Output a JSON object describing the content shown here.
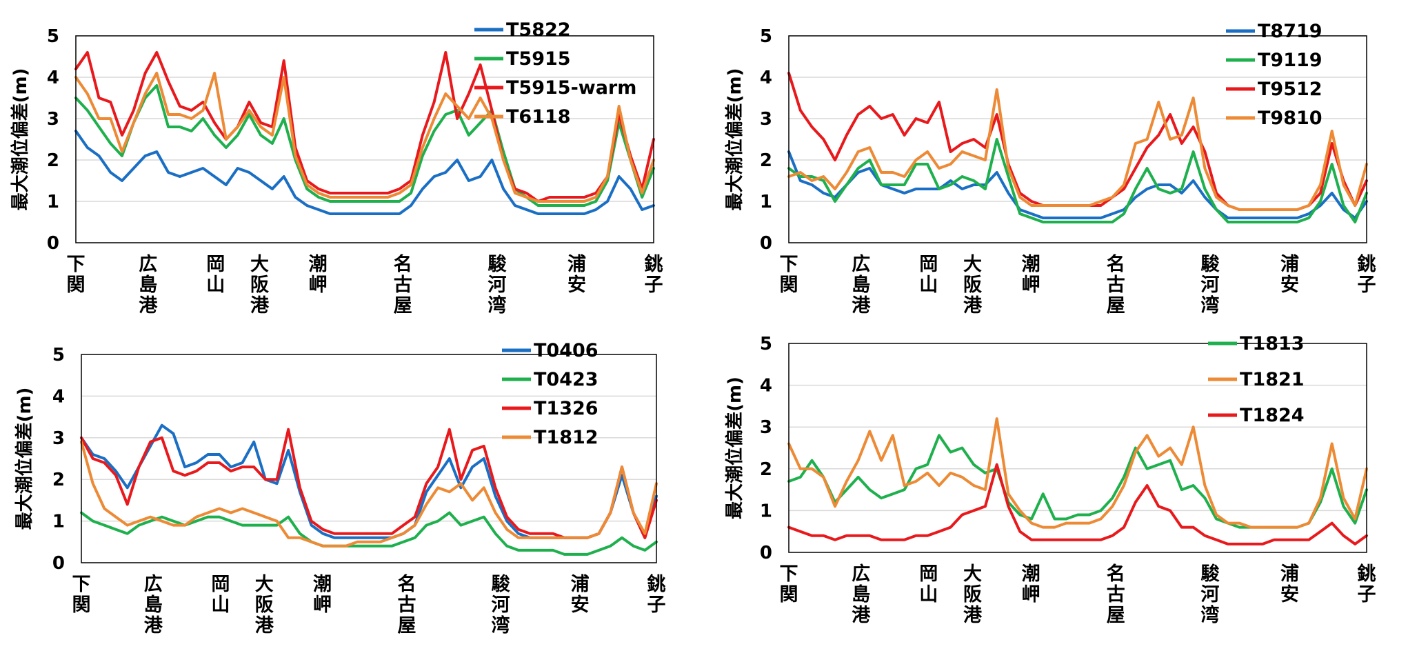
{
  "chart_data": [
    {
      "type": "line",
      "ylabel": "最大潮位偏差(m)",
      "ylim": [
        0,
        5
      ],
      "yticks": [
        "0",
        "1",
        "2",
        "3",
        "4",
        "5"
      ],
      "x_labels": [
        "下関",
        "広島港",
        "岡山",
        "大阪港",
        "潮岬",
        "名古屋",
        "駿河湾",
        "浦安",
        "銚子"
      ],
      "x_label_pos": [
        0.0,
        0.125,
        0.242,
        0.318,
        0.419,
        0.566,
        0.729,
        0.867,
        1.0
      ],
      "legend": "top-right",
      "x": [
        0.0,
        0.02,
        0.04,
        0.06,
        0.08,
        0.1,
        0.12,
        0.14,
        0.16,
        0.18,
        0.2,
        0.22,
        0.24,
        0.26,
        0.28,
        0.3,
        0.32,
        0.34,
        0.36,
        0.38,
        0.4,
        0.42,
        0.44,
        0.46,
        0.48,
        0.5,
        0.52,
        0.54,
        0.56,
        0.58,
        0.6,
        0.62,
        0.64,
        0.66,
        0.68,
        0.7,
        0.72,
        0.74,
        0.76,
        0.78,
        0.8,
        0.82,
        0.84,
        0.86,
        0.88,
        0.9,
        0.92,
        0.94,
        0.96,
        0.98,
        1.0
      ],
      "series": [
        {
          "name": "T5822",
          "color": "#1a6fc4",
          "values": [
            2.7,
            2.3,
            2.1,
            1.7,
            1.5,
            1.8,
            2.1,
            2.2,
            1.7,
            1.6,
            1.7,
            1.8,
            1.6,
            1.4,
            1.8,
            1.7,
            1.5,
            1.3,
            1.6,
            1.1,
            0.9,
            0.8,
            0.7,
            0.7,
            0.7,
            0.7,
            0.7,
            0.7,
            0.7,
            0.9,
            1.3,
            1.6,
            1.7,
            2.0,
            1.5,
            1.6,
            2.0,
            1.3,
            0.9,
            0.8,
            0.7,
            0.7,
            0.7,
            0.7,
            0.7,
            0.8,
            1.0,
            1.6,
            1.3,
            0.8,
            0.9
          ]
        },
        {
          "name": "T5915",
          "color": "#1fb04e",
          "values": [
            3.5,
            3.2,
            2.8,
            2.4,
            2.1,
            2.9,
            3.5,
            3.8,
            2.8,
            2.8,
            2.7,
            3.0,
            2.6,
            2.3,
            2.6,
            3.1,
            2.6,
            2.4,
            3.0,
            2.0,
            1.3,
            1.1,
            1.0,
            1.0,
            1.0,
            1.0,
            1.0,
            1.0,
            1.0,
            1.2,
            2.1,
            2.7,
            3.1,
            3.2,
            2.6,
            2.9,
            3.2,
            2.2,
            1.3,
            1.1,
            0.9,
            0.9,
            0.9,
            0.9,
            0.9,
            1.0,
            1.5,
            2.9,
            2.0,
            1.1,
            1.8
          ]
        },
        {
          "name": "T5915-warm",
          "color": "#e8191c",
          "values": [
            4.2,
            4.6,
            3.5,
            3.4,
            2.6,
            3.2,
            4.1,
            4.6,
            3.9,
            3.3,
            3.2,
            3.4,
            2.9,
            2.5,
            2.8,
            3.4,
            2.9,
            2.8,
            4.4,
            2.3,
            1.5,
            1.3,
            1.2,
            1.2,
            1.2,
            1.2,
            1.2,
            1.2,
            1.3,
            1.5,
            2.6,
            3.4,
            4.6,
            3.0,
            3.6,
            4.3,
            3.2,
            2.0,
            1.3,
            1.2,
            1.0,
            1.1,
            1.1,
            1.1,
            1.1,
            1.2,
            1.6,
            3.1,
            2.1,
            1.3,
            2.5
          ]
        },
        {
          "name": "T6118",
          "color": "#ed8a35",
          "values": [
            4.0,
            3.6,
            3.0,
            3.0,
            2.2,
            2.9,
            3.6,
            4.1,
            3.1,
            3.1,
            3.0,
            3.2,
            4.1,
            2.5,
            2.8,
            3.2,
            2.8,
            2.6,
            4.0,
            2.1,
            1.4,
            1.2,
            1.1,
            1.1,
            1.1,
            1.1,
            1.1,
            1.1,
            1.2,
            1.4,
            2.3,
            3.0,
            3.6,
            3.3,
            3.0,
            3.5,
            3.0,
            2.0,
            1.2,
            1.1,
            1.0,
            1.0,
            1.0,
            1.0,
            1.0,
            1.1,
            1.6,
            3.3,
            2.0,
            1.2,
            2.0
          ]
        }
      ]
    },
    {
      "type": "line",
      "ylabel": "最大潮位偏差(m)",
      "ylim": [
        0,
        5
      ],
      "yticks": [
        "0",
        "1",
        "2",
        "3",
        "4",
        "5"
      ],
      "x_labels": [
        "下関",
        "広島港",
        "岡山",
        "大阪港",
        "潮岬",
        "名古屋",
        "駿河湾",
        "浦安",
        "銚子"
      ],
      "x_label_pos": [
        0.0,
        0.125,
        0.242,
        0.318,
        0.419,
        0.566,
        0.729,
        0.867,
        1.0
      ],
      "legend": "top-right",
      "x": [
        0.0,
        0.02,
        0.04,
        0.06,
        0.08,
        0.1,
        0.12,
        0.14,
        0.16,
        0.18,
        0.2,
        0.22,
        0.24,
        0.26,
        0.28,
        0.3,
        0.32,
        0.34,
        0.36,
        0.38,
        0.4,
        0.42,
        0.44,
        0.46,
        0.48,
        0.5,
        0.52,
        0.54,
        0.56,
        0.58,
        0.6,
        0.62,
        0.64,
        0.66,
        0.68,
        0.7,
        0.72,
        0.74,
        0.76,
        0.78,
        0.8,
        0.82,
        0.84,
        0.86,
        0.88,
        0.9,
        0.92,
        0.94,
        0.96,
        0.98,
        1.0
      ],
      "series": [
        {
          "name": "T8719",
          "color": "#1a6fc4",
          "values": [
            2.2,
            1.5,
            1.4,
            1.2,
            1.1,
            1.4,
            1.7,
            1.8,
            1.4,
            1.3,
            1.2,
            1.3,
            1.3,
            1.3,
            1.5,
            1.3,
            1.4,
            1.4,
            1.7,
            1.2,
            0.8,
            0.7,
            0.6,
            0.6,
            0.6,
            0.6,
            0.6,
            0.6,
            0.7,
            0.8,
            1.1,
            1.3,
            1.4,
            1.4,
            1.2,
            1.5,
            1.1,
            0.8,
            0.6,
            0.6,
            0.6,
            0.6,
            0.6,
            0.6,
            0.6,
            0.7,
            0.9,
            1.2,
            0.8,
            0.6,
            1.0
          ]
        },
        {
          "name": "T9119",
          "color": "#1fb04e",
          "values": [
            1.8,
            1.6,
            1.6,
            1.5,
            1.0,
            1.4,
            1.8,
            2.0,
            1.4,
            1.4,
            1.4,
            1.9,
            1.9,
            1.3,
            1.4,
            1.6,
            1.5,
            1.3,
            2.5,
            1.6,
            0.7,
            0.6,
            0.5,
            0.5,
            0.5,
            0.5,
            0.5,
            0.5,
            0.5,
            0.7,
            1.3,
            1.8,
            1.3,
            1.2,
            1.3,
            2.2,
            1.3,
            0.8,
            0.5,
            0.5,
            0.5,
            0.5,
            0.5,
            0.5,
            0.5,
            0.6,
            1.0,
            1.9,
            0.9,
            0.5,
            1.2
          ]
        },
        {
          "name": "T9512",
          "color": "#e8191c",
          "values": [
            4.1,
            3.2,
            2.8,
            2.5,
            2.0,
            2.6,
            3.1,
            3.3,
            3.0,
            3.1,
            2.6,
            3.0,
            2.9,
            3.4,
            2.2,
            2.4,
            2.5,
            2.3,
            3.1,
            1.9,
            1.2,
            1.0,
            0.9,
            0.9,
            0.9,
            0.9,
            0.9,
            0.9,
            1.1,
            1.3,
            1.8,
            2.3,
            2.6,
            3.1,
            2.4,
            2.8,
            2.2,
            1.2,
            0.9,
            0.8,
            0.8,
            0.8,
            0.8,
            0.8,
            0.8,
            0.9,
            1.2,
            2.4,
            1.5,
            0.9,
            1.5
          ]
        },
        {
          "name": "T9810",
          "color": "#ed8a35",
          "values": [
            1.6,
            1.7,
            1.5,
            1.6,
            1.3,
            1.7,
            2.2,
            2.3,
            1.7,
            1.7,
            1.6,
            2.0,
            2.2,
            1.8,
            1.9,
            2.2,
            2.1,
            2.0,
            3.7,
            1.8,
            1.1,
            0.9,
            0.9,
            0.9,
            0.9,
            0.9,
            0.9,
            1.0,
            1.1,
            1.4,
            2.4,
            2.5,
            3.4,
            2.5,
            2.6,
            3.5,
            1.8,
            1.1,
            0.9,
            0.8,
            0.8,
            0.8,
            0.8,
            0.8,
            0.8,
            0.9,
            1.4,
            2.7,
            1.4,
            0.9,
            1.9
          ]
        }
      ]
    },
    {
      "type": "line",
      "ylabel": "最大潮位偏差(m)",
      "ylim": [
        0,
        5
      ],
      "yticks": [
        "0",
        "1",
        "2",
        "3",
        "4",
        "5"
      ],
      "x_labels": [
        "下関",
        "広島港",
        "岡山",
        "大阪港",
        "潮岬",
        "名古屋",
        "駿河湾",
        "浦安",
        "銚子"
      ],
      "x_label_pos": [
        0.0,
        0.125,
        0.242,
        0.318,
        0.419,
        0.566,
        0.729,
        0.867,
        1.0
      ],
      "legend": "top-right",
      "x": [
        0.0,
        0.02,
        0.04,
        0.06,
        0.08,
        0.1,
        0.12,
        0.14,
        0.16,
        0.18,
        0.2,
        0.22,
        0.24,
        0.26,
        0.28,
        0.3,
        0.32,
        0.34,
        0.36,
        0.38,
        0.4,
        0.42,
        0.44,
        0.46,
        0.48,
        0.5,
        0.52,
        0.54,
        0.56,
        0.58,
        0.6,
        0.62,
        0.64,
        0.66,
        0.68,
        0.7,
        0.72,
        0.74,
        0.76,
        0.78,
        0.8,
        0.82,
        0.84,
        0.86,
        0.88,
        0.9,
        0.92,
        0.94,
        0.96,
        0.98,
        1.0
      ],
      "series": [
        {
          "name": "T0406",
          "color": "#1a6fc4",
          "values": [
            3.0,
            2.6,
            2.5,
            2.2,
            1.8,
            2.3,
            2.8,
            3.3,
            3.1,
            2.3,
            2.4,
            2.6,
            2.6,
            2.3,
            2.4,
            2.9,
            2.0,
            1.9,
            2.7,
            1.7,
            0.9,
            0.7,
            0.6,
            0.6,
            0.6,
            0.6,
            0.6,
            0.6,
            0.7,
            0.9,
            1.7,
            2.1,
            2.5,
            1.8,
            2.3,
            2.5,
            1.6,
            1.0,
            0.7,
            0.6,
            0.6,
            0.6,
            0.6,
            0.6,
            0.6,
            0.7,
            1.2,
            2.1,
            1.2,
            0.6,
            1.6
          ]
        },
        {
          "name": "T0423",
          "color": "#1fb04e",
          "values": [
            1.2,
            1.0,
            0.9,
            0.8,
            0.7,
            0.9,
            1.0,
            1.1,
            1.0,
            0.9,
            1.0,
            1.1,
            1.1,
            1.0,
            0.9,
            0.9,
            0.9,
            0.9,
            1.1,
            0.7,
            0.5,
            0.4,
            0.4,
            0.4,
            0.4,
            0.4,
            0.4,
            0.4,
            0.5,
            0.6,
            0.9,
            1.0,
            1.2,
            0.9,
            1.0,
            1.1,
            0.7,
            0.4,
            0.3,
            0.3,
            0.3,
            0.3,
            0.2,
            0.2,
            0.2,
            0.3,
            0.4,
            0.6,
            0.4,
            0.3,
            0.5
          ]
        },
        {
          "name": "T1326",
          "color": "#e8191c",
          "values": [
            3.0,
            2.5,
            2.4,
            2.1,
            1.4,
            2.3,
            2.9,
            3.0,
            2.2,
            2.1,
            2.2,
            2.4,
            2.4,
            2.2,
            2.3,
            2.3,
            2.0,
            2.0,
            3.2,
            1.8,
            1.0,
            0.8,
            0.7,
            0.7,
            0.7,
            0.7,
            0.7,
            0.7,
            0.9,
            1.1,
            1.9,
            2.3,
            3.2,
            2.0,
            2.7,
            2.8,
            1.8,
            1.1,
            0.8,
            0.7,
            0.7,
            0.7,
            0.6,
            0.6,
            0.6,
            0.7,
            1.2,
            2.3,
            1.2,
            0.6,
            1.5
          ]
        },
        {
          "name": "T1812",
          "color": "#ed8a35",
          "values": [
            2.9,
            1.9,
            1.3,
            1.1,
            0.9,
            1.0,
            1.1,
            1.0,
            0.9,
            0.9,
            1.1,
            1.2,
            1.3,
            1.2,
            1.3,
            1.2,
            1.1,
            1.0,
            0.6,
            0.6,
            0.5,
            0.4,
            0.4,
            0.4,
            0.5,
            0.5,
            0.5,
            0.6,
            0.7,
            0.9,
            1.4,
            1.8,
            1.7,
            1.9,
            1.5,
            1.8,
            1.2,
            0.8,
            0.6,
            0.6,
            0.6,
            0.6,
            0.6,
            0.6,
            0.6,
            0.7,
            1.2,
            2.3,
            1.2,
            0.7,
            1.9
          ]
        }
      ]
    },
    {
      "type": "line",
      "ylabel": "最大潮位偏差(m)",
      "ylim": [
        0,
        5
      ],
      "yticks": [
        "0",
        "1",
        "2",
        "3",
        "4",
        "5"
      ],
      "x_labels": [
        "下関",
        "広島港",
        "岡山",
        "大阪港",
        "潮岬",
        "名古屋",
        "駿河湾",
        "浦安",
        "銚子"
      ],
      "x_label_pos": [
        0.0,
        0.125,
        0.242,
        0.318,
        0.419,
        0.566,
        0.729,
        0.867,
        1.0
      ],
      "legend": "top-right",
      "x": [
        0.0,
        0.02,
        0.04,
        0.06,
        0.08,
        0.1,
        0.12,
        0.14,
        0.16,
        0.18,
        0.2,
        0.22,
        0.24,
        0.26,
        0.28,
        0.3,
        0.32,
        0.34,
        0.36,
        0.38,
        0.4,
        0.42,
        0.44,
        0.46,
        0.48,
        0.5,
        0.52,
        0.54,
        0.56,
        0.58,
        0.6,
        0.62,
        0.64,
        0.66,
        0.68,
        0.7,
        0.72,
        0.74,
        0.76,
        0.78,
        0.8,
        0.82,
        0.84,
        0.86,
        0.88,
        0.9,
        0.92,
        0.94,
        0.96,
        0.98,
        1.0
      ],
      "series": [
        {
          "name": "T1813",
          "color": "#1fb04e",
          "values": [
            1.7,
            1.8,
            2.2,
            1.8,
            1.2,
            1.5,
            1.8,
            1.5,
            1.3,
            1.4,
            1.5,
            2.0,
            2.1,
            2.8,
            2.4,
            2.5,
            2.1,
            1.9,
            2.0,
            1.2,
            0.9,
            0.8,
            1.4,
            0.8,
            0.8,
            0.9,
            0.9,
            1.0,
            1.3,
            1.8,
            2.5,
            2.0,
            2.1,
            2.2,
            1.5,
            1.6,
            1.3,
            0.8,
            0.7,
            0.6,
            0.6,
            0.6,
            0.6,
            0.6,
            0.6,
            0.7,
            1.2,
            2.0,
            1.1,
            0.7,
            1.5
          ]
        },
        {
          "name": "T1821",
          "color": "#ed8a35",
          "values": [
            2.6,
            2.0,
            2.0,
            1.8,
            1.1,
            1.7,
            2.2,
            2.9,
            2.2,
            2.8,
            1.6,
            1.7,
            1.9,
            1.6,
            1.9,
            1.8,
            1.6,
            1.5,
            3.2,
            1.4,
            1.0,
            0.7,
            0.6,
            0.6,
            0.7,
            0.7,
            0.7,
            0.8,
            1.1,
            1.6,
            2.4,
            2.8,
            2.3,
            2.5,
            2.1,
            3.0,
            1.6,
            0.9,
            0.7,
            0.7,
            0.6,
            0.6,
            0.6,
            0.6,
            0.6,
            0.7,
            1.3,
            2.6,
            1.3,
            0.8,
            2.0
          ]
        },
        {
          "name": "T1824",
          "color": "#e8191c",
          "values": [
            0.6,
            0.5,
            0.4,
            0.4,
            0.3,
            0.4,
            0.4,
            0.4,
            0.3,
            0.3,
            0.3,
            0.4,
            0.4,
            0.5,
            0.6,
            0.9,
            1.0,
            1.1,
            2.1,
            1.1,
            0.5,
            0.3,
            0.3,
            0.3,
            0.3,
            0.3,
            0.3,
            0.3,
            0.4,
            0.6,
            1.2,
            1.6,
            1.1,
            1.0,
            0.6,
            0.6,
            0.4,
            0.3,
            0.2,
            0.2,
            0.2,
            0.2,
            0.3,
            0.3,
            0.3,
            0.3,
            0.5,
            0.7,
            0.4,
            0.2,
            0.4
          ]
        }
      ]
    }
  ]
}
